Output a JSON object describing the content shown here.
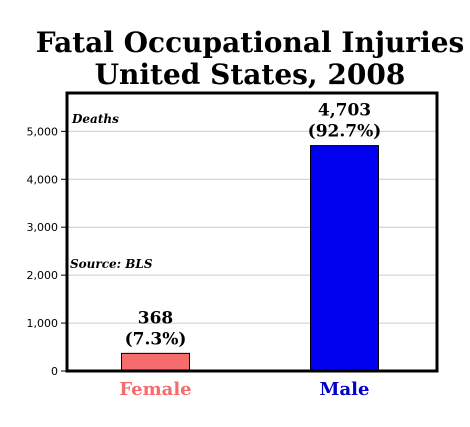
{
  "chart_data": {
    "type": "bar",
    "title": "Fatal Occupational Injuries",
    "subtitle": "United States, 2008",
    "ylabel": "Deaths",
    "source": "Source: BLS",
    "ylim": [
      0,
      5800
    ],
    "yticks": [
      "0",
      "1,000",
      "2,000",
      "3,000",
      "4,000",
      "5,000"
    ],
    "categories": [
      "Female",
      "Male"
    ],
    "values": [
      368,
      4703
    ],
    "value_labels": [
      "368",
      "4,703"
    ],
    "percent_labels": [
      "(7.3%)",
      "(92.7%)"
    ],
    "bar_colors": [
      "#f46c6c",
      "#0000ee"
    ],
    "category_colors": [
      "#f46c6c",
      "#0000cc"
    ],
    "grid": true
  }
}
